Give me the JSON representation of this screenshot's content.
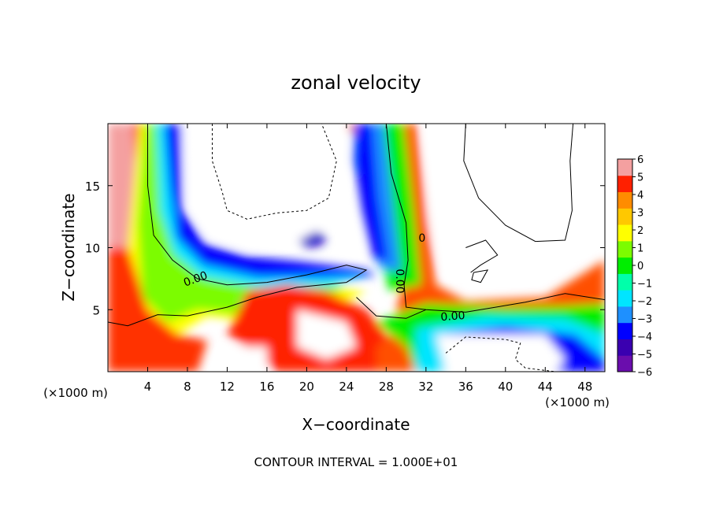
{
  "chart_data": {
    "type": "heatmap",
    "title": "zonal velocity",
    "xlabel": "X−coordinate",
    "ylabel": "Z−coordinate",
    "x_unit_label": "(×1000 m)",
    "y_unit_label": "(×1000 m)",
    "xlim": [
      0,
      50
    ],
    "ylim": [
      0,
      20
    ],
    "x_ticks": [
      4,
      8,
      12,
      16,
      20,
      24,
      28,
      32,
      36,
      40,
      44,
      48
    ],
    "y_ticks": [
      5,
      10,
      15
    ],
    "colorbar": {
      "ticks": [
        6,
        5,
        4,
        3,
        2,
        1,
        0,
        -1,
        -2,
        -3,
        -4,
        -5,
        -6
      ],
      "tick_labels": [
        "6",
        "5",
        "4",
        "3",
        "2",
        "1",
        "0",
        "−1",
        "−2",
        "−3",
        "−4",
        "−5",
        "−6"
      ],
      "range": [
        -6,
        6
      ],
      "colors": [
        "#6a0dad",
        "#3a00b0",
        "#0000ff",
        "#1e90ff",
        "#00e5ff",
        "#00ffaa",
        "#00ee00",
        "#7cfc00",
        "#ffff00",
        "#ffc800",
        "#ff8c00",
        "#ff2000",
        "#f4a0a0"
      ]
    },
    "contour_labels": [
      "0.00",
      "0.00",
      "0.00",
      "0"
    ],
    "footer": "CONTOUR INTERVAL = 1.000E+01"
  }
}
